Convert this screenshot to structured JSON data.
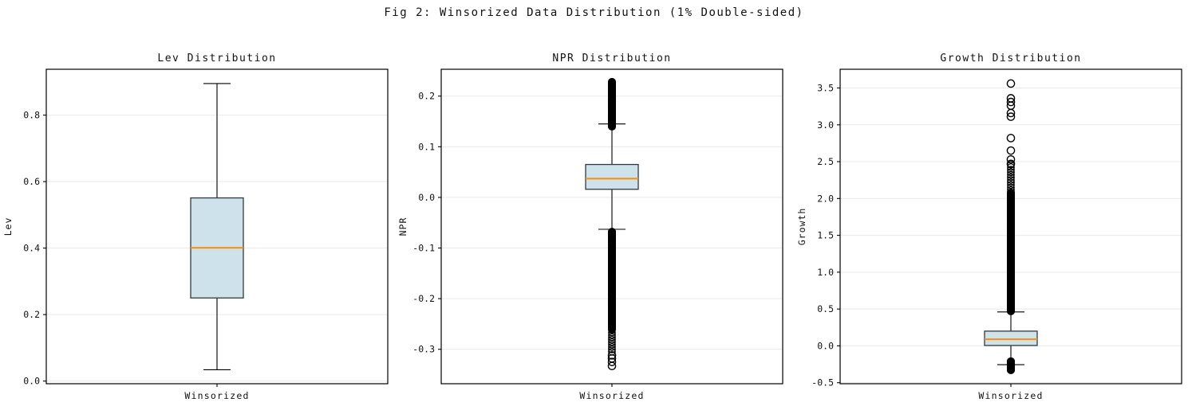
{
  "figure": {
    "title": "Fig 2: Winsorized Data Distribution (1% Double-sided)"
  },
  "colors": {
    "background": "#ffffff",
    "box_fill": "#cde2eb",
    "box_edge": "#333a3e",
    "median": "#ff8c00",
    "whisker": "#000000",
    "outlier": "#000000",
    "grid": "#e9e9e9",
    "spine": "#000000",
    "text": "#111111"
  },
  "chart_data": [
    {
      "type": "box",
      "title": "Lev Distribution",
      "ylabel": "Lev",
      "xtick_label": "Winsorized",
      "yticks": [
        0.0,
        0.2,
        0.4,
        0.6,
        0.8
      ],
      "ytick_labels": [
        "0.0",
        "0.2",
        "0.4",
        "0.6",
        "0.8"
      ],
      "ylim": [
        -0.008,
        0.938
      ],
      "grid": true,
      "box": {
        "whislo": 0.034,
        "q1": 0.25,
        "med": 0.401,
        "q3": 0.551,
        "whishi": 0.895
      },
      "outliers_dense": [],
      "outliers": []
    },
    {
      "type": "box",
      "title": "NPR Distribution",
      "ylabel": "NPR",
      "xtick_label": "Winsorized",
      "yticks": [
        0.2,
        0.1,
        0.0,
        -0.1,
        -0.2,
        -0.3
      ],
      "ytick_labels": [
        "0.2",
        "0.1",
        "0.0",
        "-0.1",
        "-0.2",
        "-0.3"
      ],
      "ylim": [
        -0.368,
        0.253
      ],
      "grid": true,
      "box": {
        "whislo": -0.063,
        "q1": 0.016,
        "med": 0.037,
        "q3": 0.065,
        "whishi": 0.145
      },
      "outliers_dense": [
        {
          "from": 0.14,
          "to": 0.228,
          "count": 70
        },
        {
          "from": -0.26,
          "to": -0.068,
          "count": 130
        },
        {
          "from": -0.305,
          "to": -0.262,
          "count": 10
        }
      ],
      "outliers": [
        -0.312,
        -0.318,
        -0.325,
        -0.333
      ]
    },
    {
      "type": "box",
      "title": "Growth Distribution",
      "ylabel": "Growth",
      "xtick_label": "Winsorized",
      "yticks": [
        3.5,
        3.0,
        2.5,
        2.0,
        1.5,
        1.0,
        0.5,
        0.0,
        -0.5
      ],
      "ytick_labels": [
        "3.5",
        "3.0",
        "2.5",
        "2.0",
        "1.5",
        "1.0",
        "0.5",
        "0.0",
        "-0.5"
      ],
      "ylim": [
        -0.514,
        3.754
      ],
      "grid": true,
      "box": {
        "whislo": -0.255,
        "q1": 0.005,
        "med": 0.09,
        "q3": 0.2,
        "whishi": 0.46
      },
      "outliers_dense": [
        {
          "from": 0.47,
          "to": 2.08,
          "count": 160
        },
        {
          "from": 2.08,
          "to": 2.46,
          "count": 12
        },
        {
          "from": -0.33,
          "to": -0.21,
          "count": 22
        }
      ],
      "outliers": [
        2.47,
        2.53,
        2.65,
        2.82,
        3.11,
        3.16,
        3.26,
        3.31,
        3.36,
        3.56
      ]
    }
  ]
}
